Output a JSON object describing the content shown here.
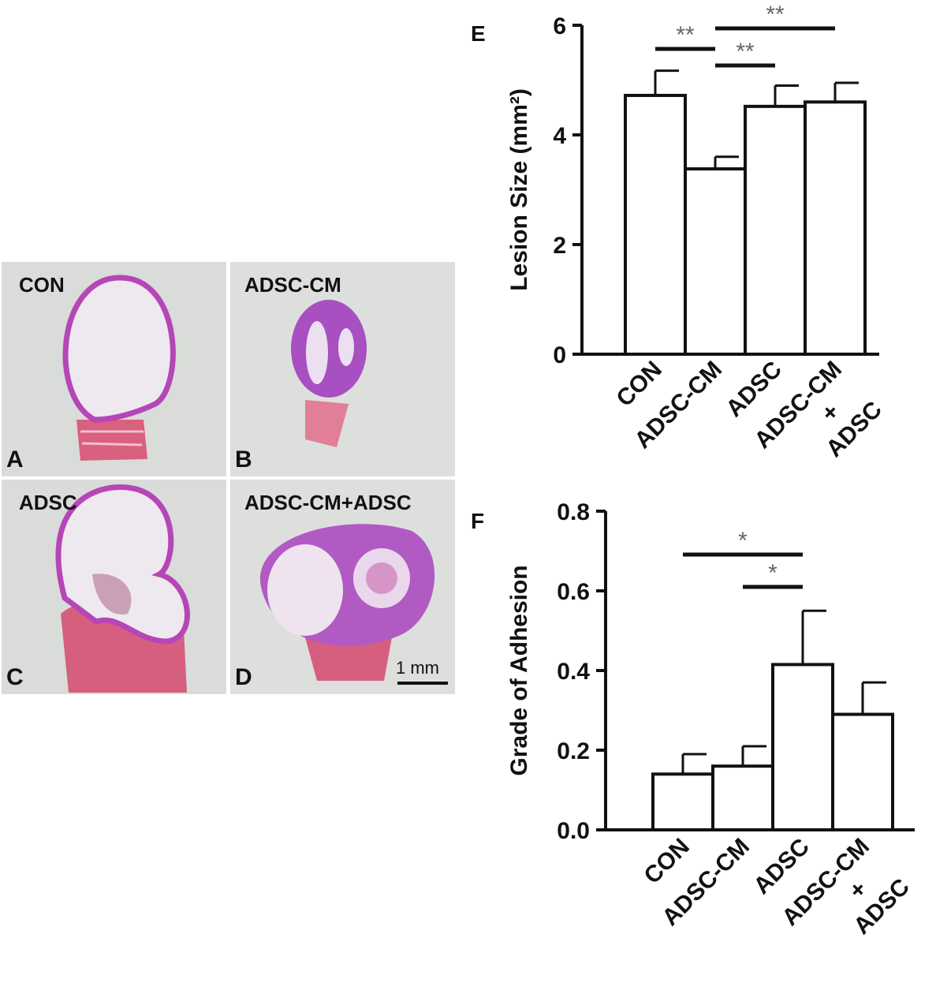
{
  "micrographs": [
    {
      "letter": "A",
      "label": "CON"
    },
    {
      "letter": "B",
      "label": "ADSC-CM"
    },
    {
      "letter": "C",
      "label": "ADSC"
    },
    {
      "letter": "D",
      "label": "ADSC-CM+ADSC"
    }
  ],
  "scale_bar": "1 mm",
  "chart_data": [
    {
      "panel": "E",
      "type": "bar",
      "categories": [
        "CON",
        "ADSC-CM",
        "ADSC",
        "ADSC-CM + ADSC"
      ],
      "category_lines": [
        [
          "CON"
        ],
        [
          "ADSC-CM"
        ],
        [
          "ADSC"
        ],
        [
          "ADSC-CM",
          "+",
          "ADSC"
        ]
      ],
      "values": [
        4.72,
        3.38,
        4.52,
        4.6
      ],
      "errors": [
        0.45,
        0.22,
        0.38,
        0.35
      ],
      "ylabel": "Lesion Size (mm²)",
      "ylim": [
        0,
        6
      ],
      "yticks": [
        "0",
        "2",
        "4",
        "6"
      ],
      "significance": [
        {
          "from": 0,
          "to": 1,
          "label": "**"
        },
        {
          "from": 1,
          "to": 2,
          "label": "**"
        },
        {
          "from": 1,
          "to": 3,
          "label": "**"
        }
      ]
    },
    {
      "panel": "F",
      "type": "bar",
      "categories": [
        "CON",
        "ADSC-CM",
        "ADSC",
        "ADSC-CM + ADSC"
      ],
      "category_lines": [
        [
          "CON"
        ],
        [
          "ADSC-CM"
        ],
        [
          "ADSC"
        ],
        [
          "ADSC-CM",
          "+",
          "ADSC"
        ]
      ],
      "values": [
        0.14,
        0.16,
        0.415,
        0.29
      ],
      "errors": [
        0.05,
        0.05,
        0.135,
        0.08
      ],
      "ylabel": "Grade of Adhesion",
      "ylim": [
        0,
        0.8
      ],
      "yticks": [
        "0.0",
        "0.2",
        "0.4",
        "0.6",
        "0.8"
      ],
      "significance": [
        {
          "from": 0,
          "to": 2,
          "label": "*"
        },
        {
          "from": 1,
          "to": 2,
          "label": "*"
        }
      ]
    }
  ]
}
